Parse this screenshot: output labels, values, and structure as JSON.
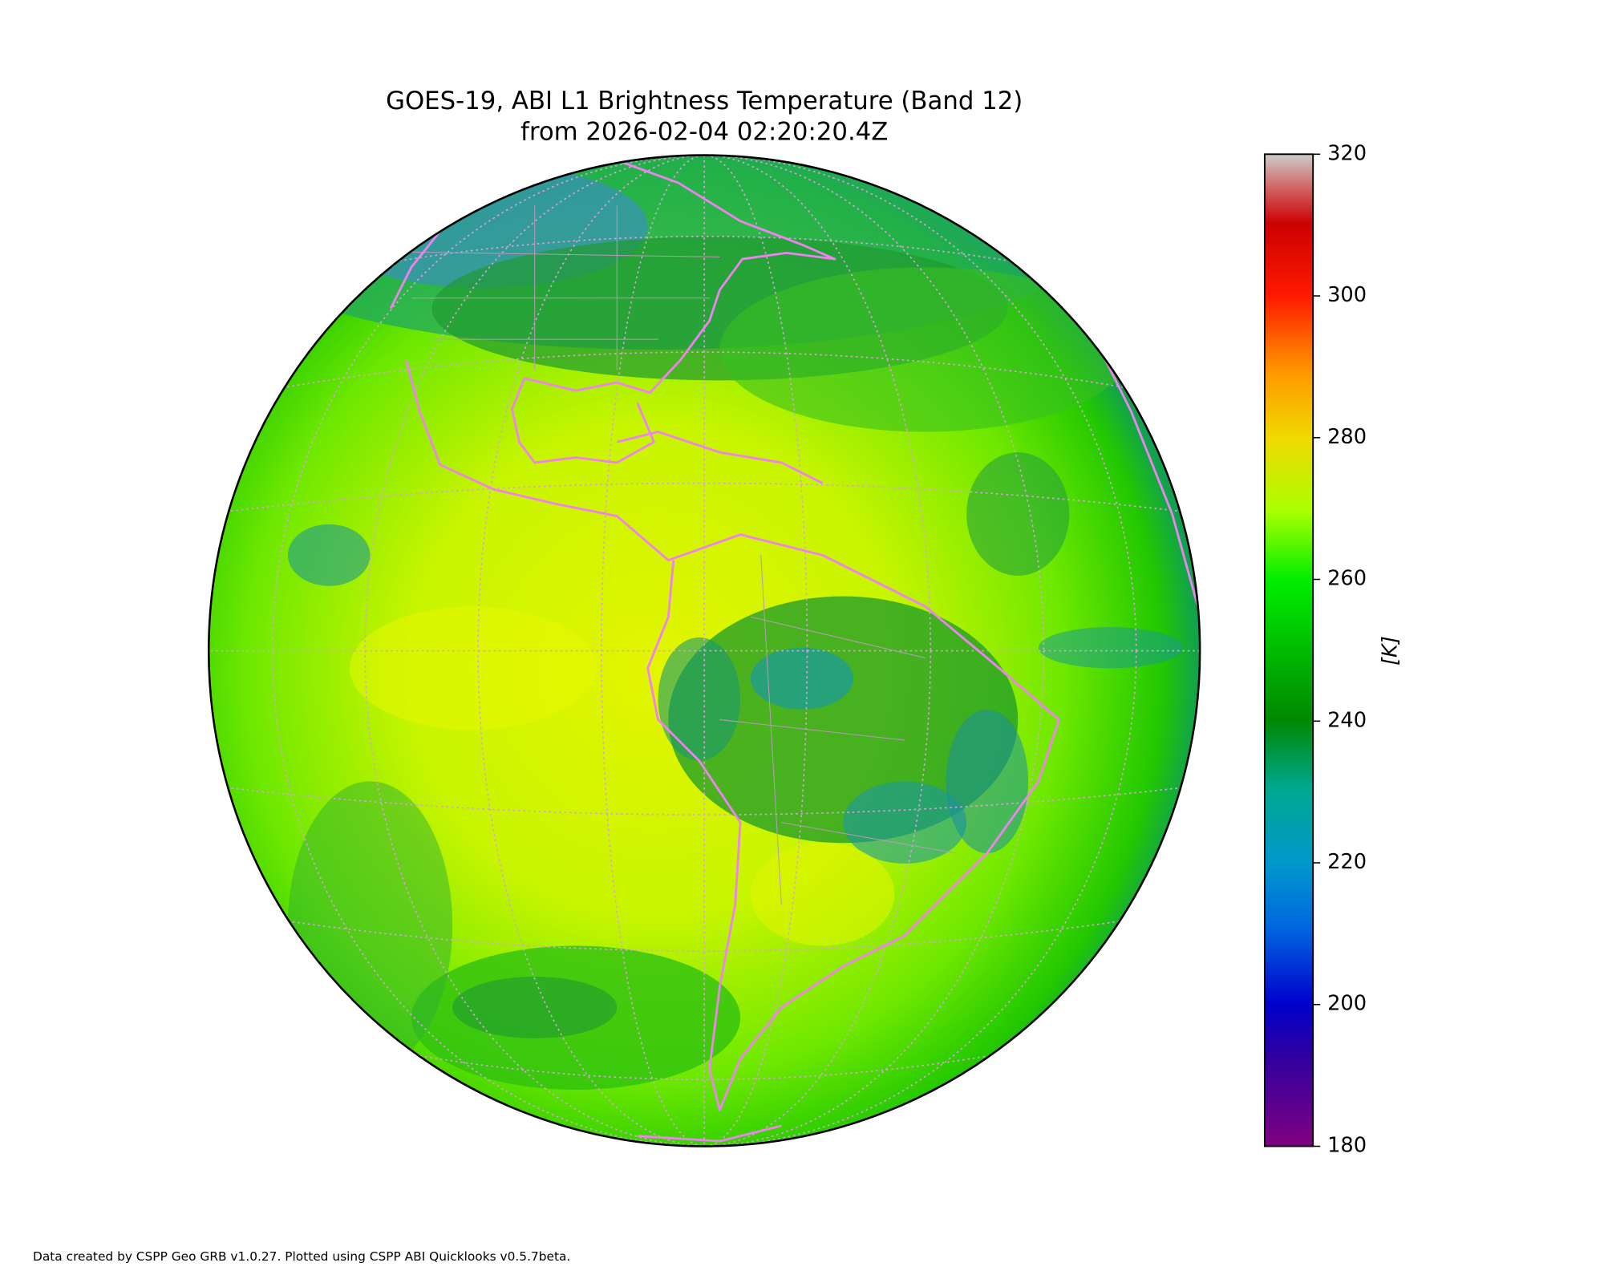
{
  "title": {
    "line1": "GOES-19, ABI L1 Brightness Temperature (Band 12)",
    "line2": "from 2026-02-04 02:20:20.4Z"
  },
  "colorbar": {
    "label": "[K]",
    "lim": [
      180,
      320
    ],
    "ticks": [
      180,
      200,
      220,
      240,
      260,
      280,
      300,
      320
    ]
  },
  "footer": "Data created by CSPP Geo GRB v1.0.27. Plotted using CSPP ABI Quicklooks v0.5.7beta."
}
